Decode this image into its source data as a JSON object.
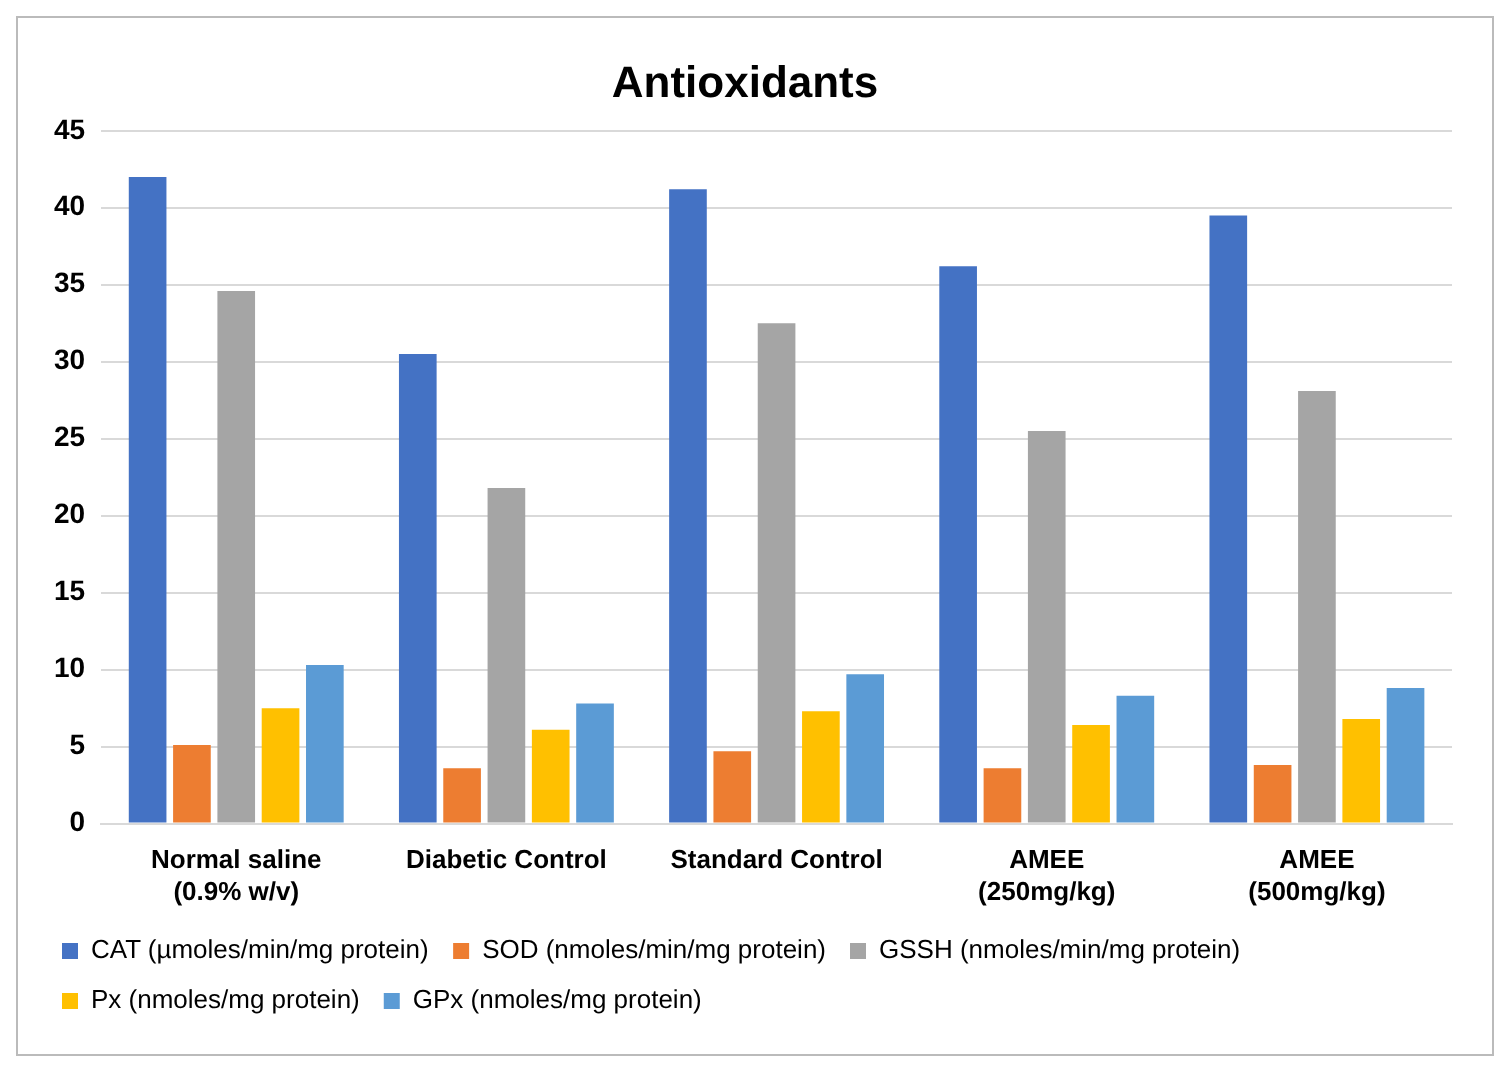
{
  "chart_data": {
    "type": "bar",
    "title": "Antioxidants",
    "categories": [
      "Normal saline (0.9% w/v)",
      "Diabetic Control",
      "Standard Control",
      "AMEE (250mg/kg)",
      "AMEE (500mg/kg)"
    ],
    "series": [
      {
        "name": "CAT (µmoles/min/mg protein)",
        "color": "#4472c4",
        "values": [
          42.0,
          30.5,
          41.2,
          36.2,
          39.5
        ]
      },
      {
        "name": "SOD (nmoles/min/mg protein)",
        "color": "#ed7d31",
        "values": [
          5.1,
          3.6,
          4.7,
          3.6,
          3.8
        ]
      },
      {
        "name": "GSSH (nmoles/min/mg protein)",
        "color": "#a5a5a5",
        "values": [
          34.6,
          21.8,
          32.5,
          25.5,
          28.1
        ]
      },
      {
        "name": "Px (nmoles/mg protein)",
        "color": "#ffc000",
        "values": [
          7.5,
          6.1,
          7.3,
          6.4,
          6.8
        ]
      },
      {
        "name": "GPx (nmoles/mg protein)",
        "color": "#5b9bd5",
        "values": [
          10.3,
          7.8,
          9.7,
          8.3,
          8.8
        ]
      }
    ],
    "ylim": [
      0,
      45
    ],
    "yticks": [
      0,
      5,
      10,
      15,
      20,
      25,
      30,
      35,
      40,
      45
    ],
    "grid": "y",
    "legend": "bottom"
  }
}
